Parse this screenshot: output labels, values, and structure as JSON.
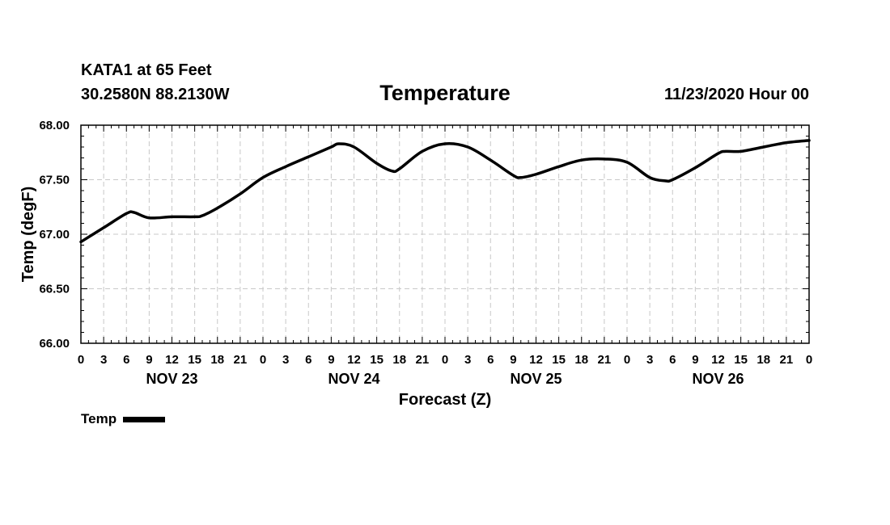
{
  "header": {
    "station": "KATA1 at 65 Feet",
    "coords": "30.2580N 88.2130W",
    "title": "Temperature",
    "datetime": "11/23/2020 Hour 00"
  },
  "colors": {
    "line": "#000000",
    "grid": "#c8c8c8",
    "frame": "#000000"
  },
  "chart_data": {
    "type": "line",
    "title": "Temperature",
    "xlabel": "Forecast (Z)",
    "ylabel": "Temp (degF)",
    "ylim": [
      66.0,
      68.0
    ],
    "xlim": [
      0,
      96
    ],
    "x_units": "hours since 11/23/2020 00Z",
    "y_ticks": [
      "66.00",
      "66.50",
      "67.00",
      "67.50",
      "68.00"
    ],
    "x_tick_labels": [
      "0",
      "3",
      "6",
      "9",
      "12",
      "15",
      "18",
      "21",
      "0",
      "3",
      "6",
      "9",
      "12",
      "15",
      "18",
      "21",
      "0",
      "3",
      "6",
      "9",
      "12",
      "15",
      "18",
      "21",
      "0",
      "3",
      "6",
      "9",
      "12",
      "15",
      "18",
      "21",
      "0"
    ],
    "x_tick_step_hours": 3,
    "day_labels": [
      {
        "label": "NOV 23",
        "hour": 12
      },
      {
        "label": "NOV 24",
        "hour": 36
      },
      {
        "label": "NOV 25",
        "hour": 60
      },
      {
        "label": "NOV 26",
        "hour": 84
      }
    ],
    "grid": true,
    "legend": {
      "position": "bottom-left",
      "entries": [
        "Temp"
      ]
    },
    "series": [
      {
        "name": "Temp",
        "x": [
          0,
          3,
          6,
          7,
          9,
          12,
          15,
          16,
          18,
          21,
          24,
          27,
          30,
          33,
          34,
          36,
          39,
          41,
          42,
          45,
          48,
          51,
          54,
          57,
          58,
          60,
          63,
          66,
          69,
          72,
          75,
          77,
          78,
          81,
          84,
          85,
          87,
          90,
          93,
          96
        ],
        "values": [
          66.93,
          67.06,
          67.19,
          67.2,
          67.15,
          67.16,
          67.16,
          67.17,
          67.24,
          67.37,
          67.52,
          67.62,
          67.71,
          67.8,
          67.83,
          67.8,
          67.65,
          67.58,
          67.6,
          67.76,
          67.83,
          67.8,
          67.68,
          67.54,
          67.52,
          67.55,
          67.62,
          67.68,
          67.69,
          67.66,
          67.52,
          67.49,
          67.5,
          67.61,
          67.74,
          67.76,
          67.76,
          67.8,
          67.84,
          67.86
        ]
      }
    ]
  }
}
